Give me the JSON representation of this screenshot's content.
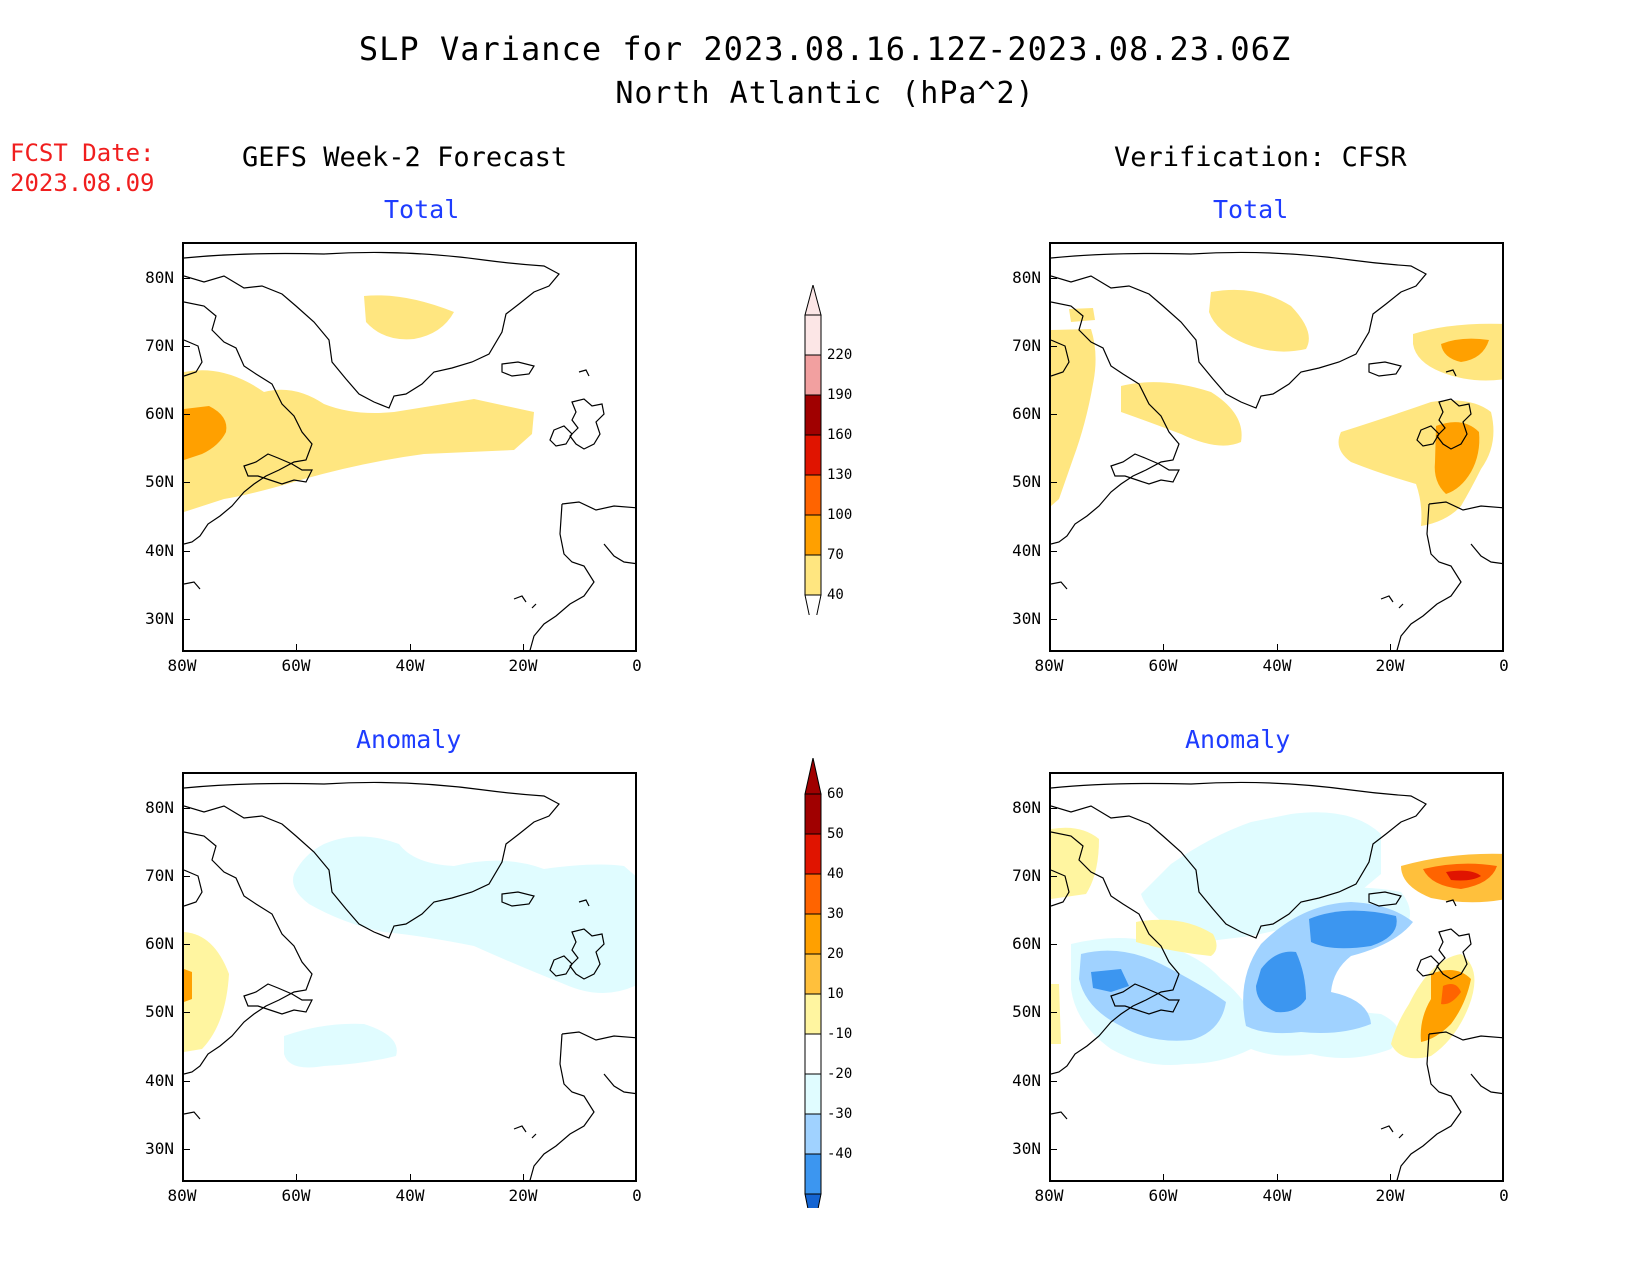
{
  "title": {
    "line1": "SLP Variance for 2023.08.16.12Z-2023.08.23.06Z",
    "line2": "North Atlantic (hPa^2)"
  },
  "fcst": {
    "label": "FCST Date:",
    "date": "2023.08.09"
  },
  "columns": {
    "left": "GEFS Week-2 Forecast",
    "right": "Verification: CFSR"
  },
  "rows": {
    "top": "Total",
    "bottom": "Anomaly"
  },
  "axes": {
    "lat_labels": [
      "80N",
      "70N",
      "60N",
      "50N",
      "40N",
      "30N"
    ],
    "lon_labels": [
      "80W",
      "60W",
      "40W",
      "20W",
      "0"
    ]
  },
  "colorbars": {
    "total": {
      "levels": [
        "220",
        "190",
        "160",
        "130",
        "100",
        "70",
        "40"
      ],
      "colors": [
        "#fce6e6",
        "#f2a0a0",
        "#a00000",
        "#e01400",
        "#ff6400",
        "#ffa000",
        "#ffe680"
      ]
    },
    "anomaly": {
      "levels": [
        "60",
        "50",
        "40",
        "30",
        "20",
        "10",
        "-10",
        "-20",
        "-30",
        "-40"
      ],
      "colors": [
        "#a00000",
        "#e01400",
        "#ff6400",
        "#ffa000",
        "#ffc03c",
        "#fff5a0",
        "#ffffff",
        "#e0fcff",
        "#a0d2ff",
        "#3c96f0",
        "#1464d2"
      ]
    }
  }
}
